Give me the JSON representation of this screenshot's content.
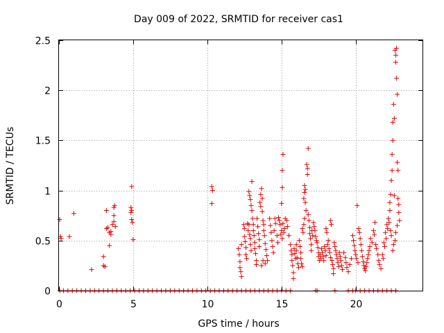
{
  "chart_data": {
    "type": "scatter",
    "title": "Day 009 of 2022, SRMTID for receiver cas1",
    "xlabel": "GPS time / hours",
    "ylabel": "SRMTID / TECUs",
    "xlim": [
      0,
      24.5
    ],
    "ylim": [
      0,
      2.5
    ],
    "xticks": [
      0,
      5,
      10,
      15,
      20
    ],
    "yticks": [
      0,
      0.5,
      1,
      1.5,
      2,
      2.5
    ],
    "xtick_labels": [
      "0",
      "5",
      "10",
      "15",
      "20"
    ],
    "ytick_labels": [
      "0",
      "0.5",
      "1",
      "1.5",
      "2",
      "2.5"
    ],
    "grid": true,
    "marker": "+",
    "color": "#e00000",
    "series": [
      {
        "name": "SRMTID",
        "points": [
          [
            0.05,
            0.71
          ],
          [
            0.1,
            0.54
          ],
          [
            0.15,
            0.52
          ],
          [
            0.7,
            0.54
          ],
          [
            1.0,
            0.77
          ],
          [
            2.2,
            0.21
          ],
          [
            3.0,
            0.34
          ],
          [
            3.0,
            0.25
          ],
          [
            3.1,
            0.24
          ],
          [
            3.2,
            0.8
          ],
          [
            3.2,
            0.62
          ],
          [
            3.3,
            0.63
          ],
          [
            3.4,
            0.58
          ],
          [
            3.4,
            0.45
          ],
          [
            3.5,
            0.59
          ],
          [
            3.5,
            0.56
          ],
          [
            3.6,
            0.66
          ],
          [
            3.7,
            0.83
          ],
          [
            3.75,
            0.85
          ],
          [
            3.7,
            0.75
          ],
          [
            3.7,
            0.69
          ],
          [
            3.8,
            0.64
          ],
          [
            4.9,
            1.04
          ],
          [
            4.85,
            0.83
          ],
          [
            4.9,
            0.8
          ],
          [
            4.85,
            0.78
          ],
          [
            4.9,
            0.71
          ],
          [
            4.95,
            0.68
          ],
          [
            5.0,
            0.51
          ],
          [
            10.3,
            1.04
          ],
          [
            10.35,
            1.0
          ],
          [
            10.3,
            0.87
          ],
          [
            12.1,
            0.42
          ],
          [
            12.15,
            0.36
          ],
          [
            12.2,
            0.29
          ],
          [
            12.2,
            0.23
          ],
          [
            12.25,
            0.19
          ],
          [
            12.3,
            0.14
          ],
          [
            12.3,
            0.46
          ],
          [
            12.45,
            0.66
          ],
          [
            12.5,
            0.62
          ],
          [
            12.5,
            0.54
          ],
          [
            12.55,
            0.49
          ],
          [
            12.6,
            0.43
          ],
          [
            12.6,
            0.36
          ],
          [
            12.65,
            0.32
          ],
          [
            12.7,
            0.67
          ],
          [
            12.75,
            0.6
          ],
          [
            12.8,
            0.66
          ],
          [
            12.85,
            0.56
          ],
          [
            12.9,
            0.52
          ],
          [
            12.9,
            0.46
          ],
          [
            12.95,
            0.4
          ],
          [
            12.8,
            0.99
          ],
          [
            12.85,
            0.95
          ],
          [
            12.9,
            0.91
          ],
          [
            12.95,
            0.85
          ],
          [
            13.0,
            0.8
          ],
          [
            13.0,
            1.09
          ],
          [
            13.05,
            0.72
          ],
          [
            13.1,
            0.66
          ],
          [
            13.1,
            0.6
          ],
          [
            13.15,
            0.55
          ],
          [
            13.2,
            0.48
          ],
          [
            13.2,
            0.42
          ],
          [
            13.25,
            0.37
          ],
          [
            13.3,
            0.3
          ],
          [
            13.3,
            0.26
          ],
          [
            13.35,
            0.72
          ],
          [
            13.4,
            0.64
          ],
          [
            13.45,
            0.57
          ],
          [
            13.5,
            0.51
          ],
          [
            13.5,
            0.44
          ],
          [
            13.55,
            0.88
          ],
          [
            13.6,
            0.84
          ],
          [
            13.6,
            0.96
          ],
          [
            13.65,
            1.02
          ],
          [
            13.7,
            0.92
          ],
          [
            13.7,
            0.79
          ],
          [
            13.75,
            0.7
          ],
          [
            13.8,
            0.66
          ],
          [
            13.8,
            0.6
          ],
          [
            13.85,
            0.55
          ],
          [
            13.9,
            0.47
          ],
          [
            13.95,
            0.41
          ],
          [
            14.0,
            0.35
          ],
          [
            14.05,
            0.3
          ],
          [
            13.65,
            0.25
          ],
          [
            13.75,
            0.3
          ],
          [
            13.9,
            0.27
          ],
          [
            14.2,
            0.72
          ],
          [
            14.25,
            0.65
          ],
          [
            14.3,
            0.58
          ],
          [
            14.35,
            0.5
          ],
          [
            14.4,
            0.44
          ],
          [
            14.45,
            0.38
          ],
          [
            14.5,
            0.6
          ],
          [
            14.55,
            0.72
          ],
          [
            14.6,
            0.67
          ],
          [
            14.7,
            0.55
          ],
          [
            14.75,
            0.48
          ],
          [
            14.8,
            0.73
          ],
          [
            14.85,
            0.7
          ],
          [
            14.9,
            0.66
          ],
          [
            14.95,
            0.56
          ],
          [
            15.0,
            0.6
          ],
          [
            15.05,
            0.52
          ],
          [
            15.1,
            0.67
          ],
          [
            15.1,
            1.36
          ],
          [
            15.05,
            1.2
          ],
          [
            15.05,
            1.03
          ],
          [
            15.0,
            0.87
          ],
          [
            15.15,
            0.58
          ],
          [
            15.2,
            0.62
          ],
          [
            15.25,
            0.72
          ],
          [
            15.35,
            0.7
          ],
          [
            15.4,
            0.64
          ],
          [
            15.5,
            0.55
          ],
          [
            15.6,
            0.46
          ],
          [
            15.65,
            0.4
          ],
          [
            15.7,
            0.36
          ],
          [
            15.7,
            0.3
          ],
          [
            15.75,
            0.25
          ],
          [
            15.8,
            0.18
          ],
          [
            15.8,
            0.12
          ],
          [
            15.85,
            0.42
          ],
          [
            15.9,
            0.37
          ],
          [
            15.95,
            0.32
          ],
          [
            16.0,
            0.46
          ],
          [
            16.0,
            0.4
          ],
          [
            16.05,
            0.33
          ],
          [
            16.1,
            0.27
          ],
          [
            16.15,
            0.23
          ],
          [
            16.2,
            0.5
          ],
          [
            16.25,
            0.44
          ],
          [
            16.3,
            0.38
          ],
          [
            16.3,
            0.32
          ],
          [
            16.35,
            0.27
          ],
          [
            16.4,
            0.24
          ],
          [
            16.4,
            0.62
          ],
          [
            16.45,
            0.58
          ],
          [
            16.5,
            0.66
          ],
          [
            16.55,
            0.72
          ],
          [
            16.5,
            0.92
          ],
          [
            16.55,
            0.98
          ],
          [
            16.55,
            1.05
          ],
          [
            16.6,
            1.01
          ],
          [
            16.6,
            0.88
          ],
          [
            16.65,
            0.8
          ],
          [
            16.7,
            1.26
          ],
          [
            16.75,
            1.22
          ],
          [
            16.75,
            1.16
          ],
          [
            16.8,
            1.42
          ],
          [
            16.8,
            0.76
          ],
          [
            16.85,
            0.7
          ],
          [
            16.9,
            0.63
          ],
          [
            16.9,
            0.57
          ],
          [
            16.95,
            0.52
          ],
          [
            17.0,
            0.46
          ],
          [
            17.0,
            0.4
          ],
          [
            17.05,
            0.6
          ],
          [
            17.1,
            0.55
          ],
          [
            17.15,
            0.68
          ],
          [
            17.2,
            0.64
          ],
          [
            17.25,
            0.6
          ],
          [
            17.3,
            0.54
          ],
          [
            17.35,
            0.5
          ],
          [
            17.4,
            0.48
          ],
          [
            17.45,
            0.43
          ],
          [
            17.5,
            0.38
          ],
          [
            17.5,
            0.34
          ],
          [
            17.55,
            0.3
          ],
          [
            17.6,
            0.36
          ],
          [
            17.65,
            0.32
          ],
          [
            17.7,
            0.42
          ],
          [
            17.75,
            0.38
          ],
          [
            17.8,
            0.34
          ],
          [
            17.85,
            0.3
          ],
          [
            17.9,
            0.44
          ],
          [
            17.95,
            0.4
          ],
          [
            18.0,
            0.35
          ],
          [
            18.0,
            0.62
          ],
          [
            18.05,
            0.58
          ],
          [
            18.1,
            0.46
          ],
          [
            18.15,
            0.5
          ],
          [
            18.2,
            0.42
          ],
          [
            18.25,
            0.38
          ],
          [
            18.3,
            0.33
          ],
          [
            18.3,
            0.7
          ],
          [
            18.35,
            0.66
          ],
          [
            18.4,
            0.3
          ],
          [
            18.45,
            0.26
          ],
          [
            18.5,
            0.22
          ],
          [
            18.5,
            0.17
          ],
          [
            18.55,
            0.48
          ],
          [
            18.6,
            0.44
          ],
          [
            18.65,
            0.4
          ],
          [
            18.7,
            0.36
          ],
          [
            18.75,
            0.32
          ],
          [
            18.8,
            0.28
          ],
          [
            18.85,
            0.24
          ],
          [
            18.9,
            0.38
          ],
          [
            18.95,
            0.34
          ],
          [
            19.0,
            0.3
          ],
          [
            19.05,
            0.25
          ],
          [
            19.1,
            0.21
          ],
          [
            19.2,
            0.38
          ],
          [
            19.3,
            0.33
          ],
          [
            19.35,
            0.28
          ],
          [
            19.4,
            0.23
          ],
          [
            19.5,
            0.19
          ],
          [
            19.6,
            0.26
          ],
          [
            19.7,
            0.32
          ],
          [
            19.8,
            0.55
          ],
          [
            19.85,
            0.5
          ],
          [
            19.9,
            0.45
          ],
          [
            19.95,
            0.4
          ],
          [
            20.0,
            0.36
          ],
          [
            20.05,
            0.32
          ],
          [
            20.1,
            0.85
          ],
          [
            20.15,
            0.28
          ],
          [
            20.2,
            0.62
          ],
          [
            20.25,
            0.58
          ],
          [
            20.3,
            0.52
          ],
          [
            20.35,
            0.46
          ],
          [
            20.4,
            0.4
          ],
          [
            20.45,
            0.34
          ],
          [
            20.5,
            0.29
          ],
          [
            20.55,
            0.25
          ],
          [
            20.6,
            0.22
          ],
          [
            20.65,
            0.2
          ],
          [
            20.7,
            0.24
          ],
          [
            20.75,
            0.28
          ],
          [
            20.8,
            0.32
          ],
          [
            20.85,
            0.36
          ],
          [
            20.9,
            0.4
          ],
          [
            20.95,
            0.44
          ],
          [
            21.0,
            0.52
          ],
          [
            21.1,
            0.48
          ],
          [
            21.2,
            0.6
          ],
          [
            21.25,
            0.56
          ],
          [
            21.3,
            0.68
          ],
          [
            21.35,
            0.46
          ],
          [
            21.4,
            0.42
          ],
          [
            21.5,
            0.36
          ],
          [
            21.55,
            0.3
          ],
          [
            21.6,
            0.26
          ],
          [
            21.7,
            0.22
          ],
          [
            21.8,
            0.36
          ],
          [
            21.85,
            0.32
          ],
          [
            21.9,
            0.48
          ],
          [
            21.95,
            0.44
          ],
          [
            22.0,
            0.58
          ],
          [
            22.05,
            0.52
          ],
          [
            22.1,
            0.66
          ],
          [
            22.15,
            0.62
          ],
          [
            22.2,
            0.72
          ],
          [
            22.25,
            0.68
          ],
          [
            22.3,
            0.8
          ],
          [
            22.3,
            0.88
          ],
          [
            22.35,
            0.96
          ],
          [
            22.35,
            0.6
          ],
          [
            22.4,
            0.55
          ],
          [
            22.4,
            1.1
          ],
          [
            22.45,
            1.2
          ],
          [
            22.45,
            1.36
          ],
          [
            22.5,
            1.5
          ],
          [
            22.5,
            1.68
          ],
          [
            22.55,
            1.86
          ],
          [
            22.6,
            1.72
          ],
          [
            22.6,
            0.95
          ],
          [
            22.65,
            2.4
          ],
          [
            22.7,
            2.35
          ],
          [
            22.7,
            2.28
          ],
          [
            22.75,
            2.42
          ],
          [
            22.75,
            2.12
          ],
          [
            22.8,
            1.96
          ],
          [
            22.8,
            1.28
          ],
          [
            22.85,
            1.2
          ],
          [
            22.85,
            0.92
          ],
          [
            22.9,
            0.86
          ],
          [
            22.9,
            0.78
          ],
          [
            22.95,
            0.7
          ],
          [
            22.8,
            0.65
          ],
          [
            22.7,
            0.58
          ],
          [
            22.65,
            0.5
          ],
          [
            22.55,
            0.46
          ],
          [
            22.5,
            0.4
          ]
        ],
        "zero_points": [
          0.05,
          0.3,
          0.6,
          0.9,
          1.2,
          1.5,
          1.8,
          2.1,
          2.4,
          2.7,
          3.0,
          3.3,
          3.6,
          3.9,
          4.2,
          4.5,
          4.8,
          5.1,
          5.4,
          5.7,
          6.0,
          6.3,
          6.6,
          6.9,
          7.2,
          7.5,
          7.8,
          8.1,
          8.4,
          8.7,
          9.0,
          9.3,
          9.6,
          9.9,
          10.2,
          10.5,
          10.8,
          11.1,
          11.4,
          11.7,
          12.0,
          12.3,
          12.6,
          12.9,
          13.2,
          13.5,
          13.8,
          14.1,
          14.4,
          14.7,
          15.0,
          15.3,
          15.6,
          17.3,
          17.4,
          18.6,
          19.5,
          19.8,
          20.0,
          20.3,
          20.6,
          20.9,
          21.2,
          21.5,
          21.8,
          22.1,
          22.4,
          22.7
        ]
      }
    ]
  }
}
